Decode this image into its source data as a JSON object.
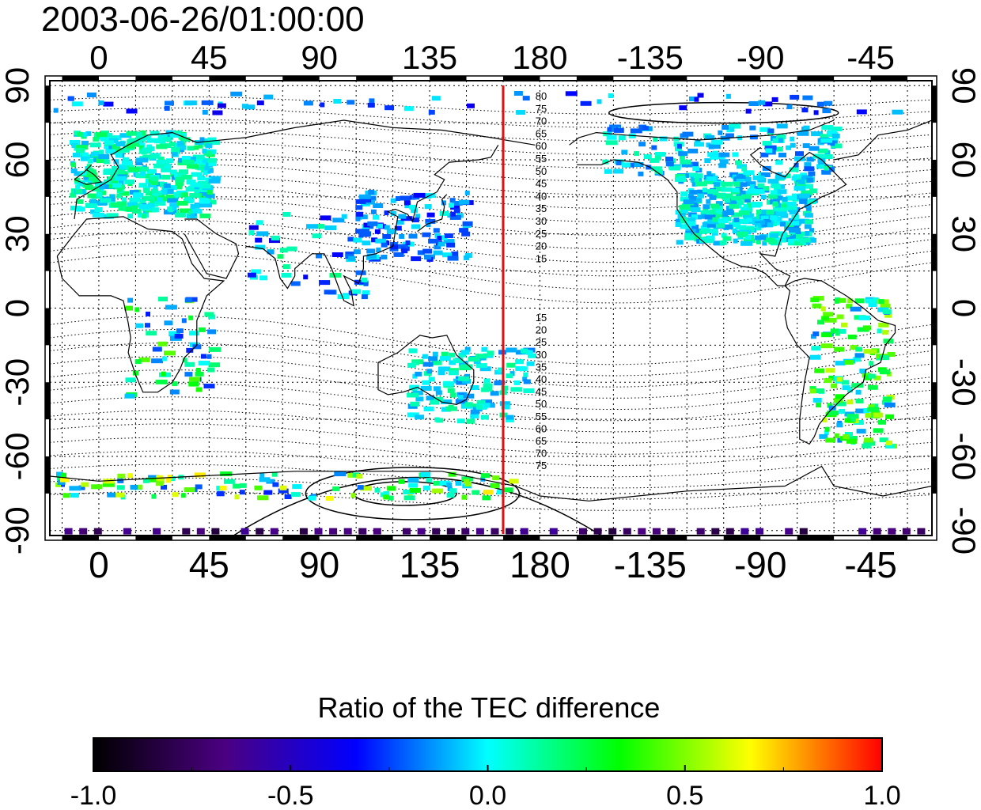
{
  "title": "2003-06-26/01:00:00",
  "map": {
    "lon_ticks": [
      "0",
      "45",
      "90",
      "135",
      "180",
      "-135",
      "-90",
      "-45"
    ],
    "lat_ticks": [
      "90",
      "60",
      "30",
      "0",
      "-30",
      "-60",
      "-90"
    ],
    "lon_range": [
      -20,
      340
    ],
    "lat_range": [
      -92,
      92
    ],
    "contour_labels_north": [
      "80",
      "75",
      "70",
      "65",
      "60",
      "55",
      "50",
      "45",
      "40",
      "35",
      "30",
      "25",
      "20",
      "15"
    ],
    "contour_labels_south": [
      "15",
      "20",
      "25",
      "30",
      "35",
      "40",
      "45",
      "50",
      "55",
      "60",
      "65",
      "70",
      "75"
    ],
    "meridian_marker_lon": 165,
    "meridian_marker_color": "#e01010",
    "grid": "dotted"
  },
  "colorbar": {
    "title": "Ratio of the TEC difference",
    "tick_labels": [
      "-1.0",
      "-0.5",
      "0.0",
      "0.5",
      "1.0"
    ],
    "range": [
      -1.0,
      1.0
    ],
    "colormap": [
      "#000000",
      "#4b0082",
      "#0000ff",
      "#00ffff",
      "#00ff00",
      "#ffff00",
      "#ff0000"
    ]
  }
}
